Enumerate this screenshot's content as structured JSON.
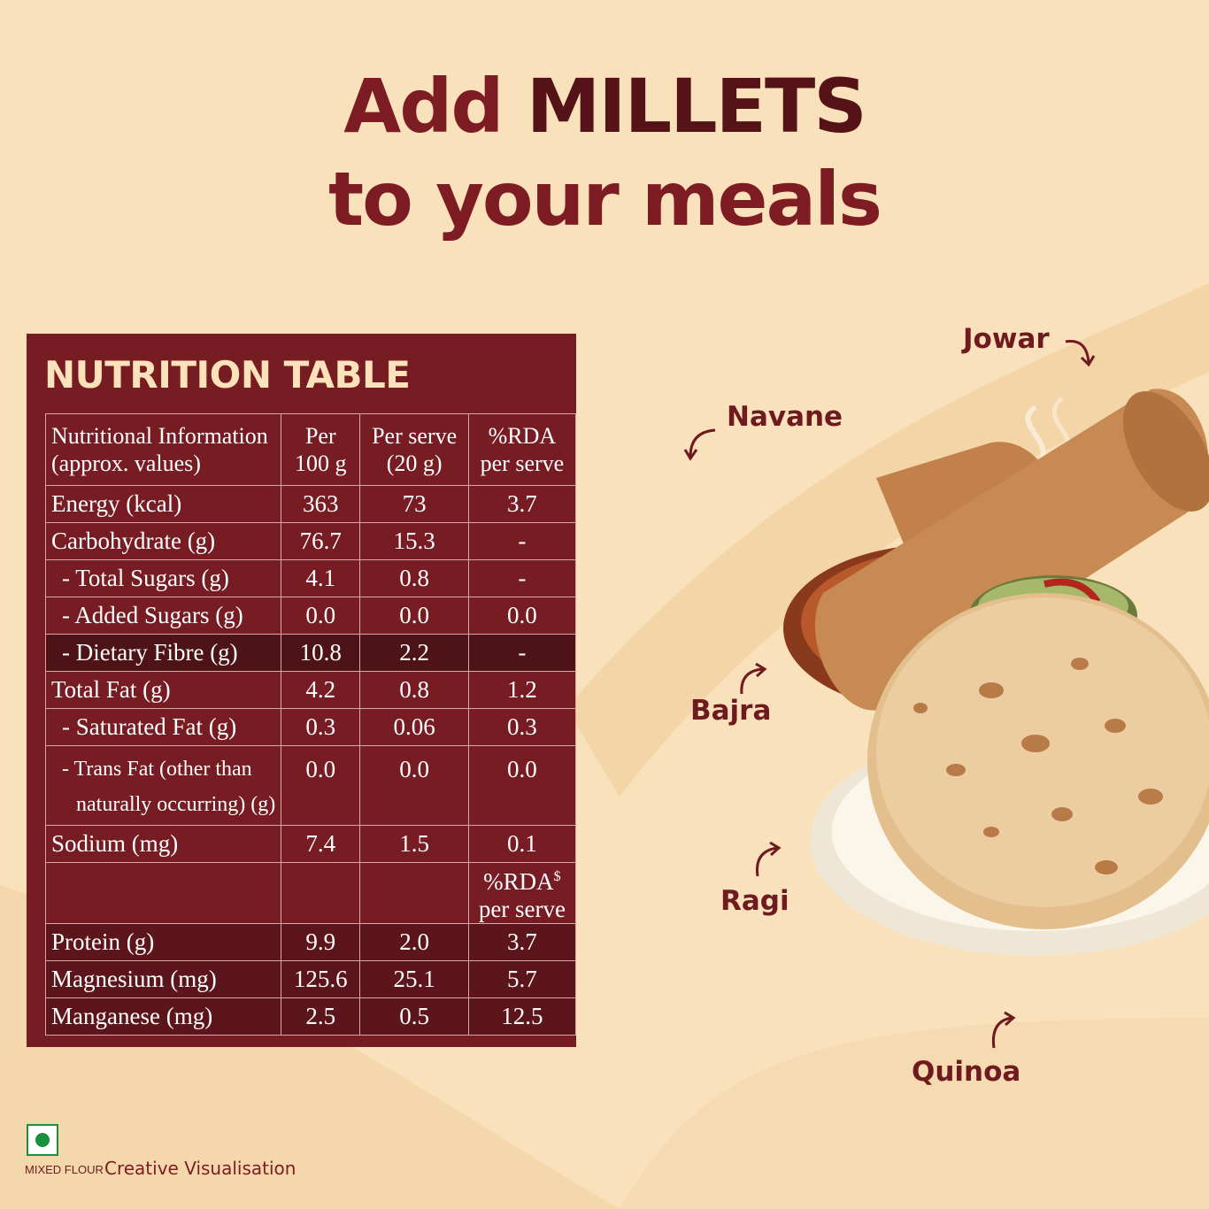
{
  "headline": {
    "line1_prefix": "Add",
    "line1_highlight": "MILLETS",
    "line2": "to your meals"
  },
  "nutrition": {
    "title": "NUTRITION TABLE",
    "header": {
      "c1_line1": "Nutritional Information",
      "c1_line2": "(approx. values)",
      "c2_line1": "Per",
      "c2_line2": "100 g",
      "c3_line1": "Per serve",
      "c3_line2": "(20 g)",
      "c4_line1": "%RDA",
      "c4_line2": "per serve"
    },
    "rows": [
      {
        "label": "Energy (kcal)",
        "per100": "363",
        "serve": "73",
        "rda": "3.7"
      },
      {
        "label": "Carbohydrate (g)",
        "per100": "76.7",
        "serve": "15.3",
        "rda": "-"
      },
      {
        "label": "- Total Sugars (g)",
        "per100": "4.1",
        "serve": "0.8",
        "rda": "-"
      },
      {
        "label": "- Added Sugars (g)",
        "per100": "0.0",
        "serve": "0.0",
        "rda": "0.0"
      },
      {
        "label": "- Dietary Fibre (g)",
        "per100": "10.8",
        "serve": "2.2",
        "rda": "-"
      },
      {
        "label": "Total Fat (g)",
        "per100": "4.2",
        "serve": "0.8",
        "rda": "1.2"
      },
      {
        "label": "- Saturated Fat (g)",
        "per100": "0.3",
        "serve": "0.06",
        "rda": "0.3"
      },
      {
        "label_line1": "- Trans Fat (other than",
        "label_line2": "naturally occurring) (g)",
        "per100": "0.0",
        "serve": "0.0",
        "rda": "0.0"
      },
      {
        "label": "Sodium (mg)",
        "per100": "7.4",
        "serve": "1.5",
        "rda": "0.1"
      }
    ],
    "rda_dollar_header": {
      "line1": "%RDA",
      "sup": "$",
      "line2": "per serve"
    },
    "rows2": [
      {
        "label": "Protein (g)",
        "per100": "9.9",
        "serve": "2.0",
        "rda": "3.7"
      },
      {
        "label": "Magnesium (mg)",
        "per100": "125.6",
        "serve": "25.1",
        "rda": "5.7"
      },
      {
        "label": "Manganese (mg)",
        "per100": "2.5",
        "serve": "0.5",
        "rda": "12.5"
      }
    ]
  },
  "millet_labels": {
    "jowar": "Jowar",
    "navane": "Navane",
    "bajra": "Bajra",
    "ragi": "Ragi",
    "quinoa": "Quinoa"
  },
  "footer": {
    "mixed_flour": "MIXED FLOUR",
    "creative": "Creative Visualisation"
  },
  "colors": {
    "background": "#f9e1bb",
    "maroon": "#761c22",
    "title_cream": "#fbe2bb",
    "veg_green": "#1a8f3c"
  }
}
